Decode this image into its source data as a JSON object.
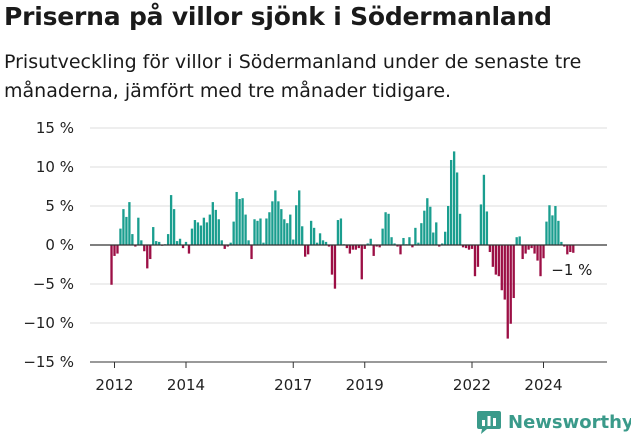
{
  "header": {
    "title": "Priserna på villor sjönk i Södermanland",
    "subtitle": "Prisutveckling för villor i Södermanland under de senaste tre månaderna, jämfört med tre månader tidigare."
  },
  "branding": {
    "logo_text": "Newsworthy",
    "logo_icon": "bar-chart-logo-icon"
  },
  "colors": {
    "positive": "#1a9e8f",
    "negative": "#9c0f45",
    "grid": "#dddddd",
    "zero_line": "#333333",
    "brand": "#3a9a8a"
  },
  "chart_data": {
    "type": "bar",
    "x_unit": "month",
    "start": "2011-12",
    "ylim": [
      -15,
      15
    ],
    "yticks": [
      -15,
      -10,
      -5,
      0,
      5,
      10,
      15
    ],
    "ytick_labels": [
      "−15 %",
      "−10 %",
      "−5 %",
      "0 %",
      "5 %",
      "10 %",
      "15 %"
    ],
    "xticks": [
      "2012",
      "2014",
      "2017",
      "2019",
      "2022",
      "2024"
    ],
    "annotation": "−1 %",
    "grid": true,
    "values": [
      -5.1,
      -1.4,
      -1.1,
      2.1,
      4.6,
      3.6,
      5.5,
      1.4,
      -0.2,
      3.5,
      0.6,
      -0.8,
      -3.0,
      -1.8,
      2.3,
      0.5,
      0.4,
      -0.1,
      0.1,
      1.4,
      6.4,
      4.6,
      0.5,
      0.8,
      -0.4,
      0.4,
      -1.1,
      2.1,
      3.2,
      2.9,
      2.5,
      3.5,
      2.9,
      3.9,
      5.5,
      4.5,
      3.3,
      0.6,
      -0.5,
      -0.2,
      0.3,
      3.0,
      6.8,
      5.9,
      6.0,
      3.9,
      0.6,
      -1.8,
      3.3,
      3.1,
      3.4,
      0.3,
      3.4,
      4.2,
      5.6,
      7.0,
      5.6,
      4.6,
      3.3,
      2.8,
      3.9,
      0.7,
      5.1,
      7.0,
      2.4,
      -1.5,
      -1.2,
      3.1,
      2.2,
      0.3,
      1.5,
      0.6,
      0.4,
      -0.2,
      -3.8,
      -5.6,
      3.2,
      3.4,
      0.1,
      -0.4,
      -1.1,
      -0.6,
      -0.6,
      -0.4,
      -4.4,
      -0.5,
      0.2,
      0.8,
      -1.4,
      -0.2,
      -0.3,
      2.1,
      4.2,
      4.0,
      1.0,
      0.2,
      -0.2,
      -1.2,
      0.9,
      0.1,
      1.0,
      -0.3,
      2.2,
      0.3,
      2.8,
      4.4,
      6.0,
      4.9,
      1.6,
      2.9,
      -0.2,
      0.2,
      1.7,
      5.0,
      10.9,
      12.0,
      9.3,
      4.0,
      -0.3,
      -0.4,
      -0.6,
      -0.5,
      -4.0,
      -2.8,
      5.2,
      9.0,
      4.3,
      -0.9,
      -2.8,
      -3.8,
      -4.0,
      -5.8,
      -7.0,
      -12.0,
      -10.1,
      -6.8,
      1.0,
      1.1,
      -1.8,
      -1.1,
      -0.6,
      -0.4,
      -1.1,
      -2.0,
      -4.0,
      -1.7,
      3.0,
      5.1,
      3.8,
      5.0,
      3.1,
      0.4,
      -0.2,
      -1.2,
      -0.9,
      -1.0
    ]
  }
}
